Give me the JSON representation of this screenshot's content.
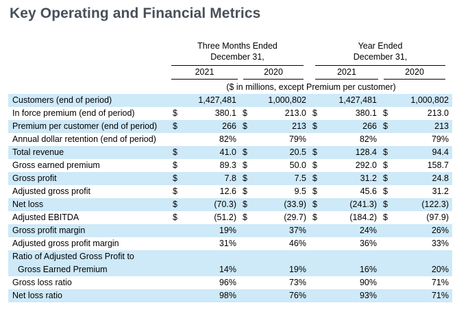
{
  "page_title": "Key Operating and Financial Metrics",
  "colors": {
    "row_shade": "#cee9f8",
    "title_text": "#47505a",
    "table_text": "#000000"
  },
  "table": {
    "note": "($ in millions, except Premium per customer)",
    "column_groups": [
      {
        "line1": "Three Months Ended",
        "line2": "December 31,",
        "years": [
          "2021",
          "2020"
        ]
      },
      {
        "line1": "Year Ended",
        "line2": "December 31,",
        "years": [
          "2021",
          "2020"
        ]
      }
    ],
    "rows": [
      {
        "label_lines": [
          "Customers (end of period)"
        ],
        "cells": [
          {
            "cur": "",
            "val": "1,427,481"
          },
          {
            "cur": "",
            "val": "1,000,802"
          },
          {
            "cur": "",
            "val": "1,427,481"
          },
          {
            "cur": "",
            "val": "1,000,802"
          }
        ]
      },
      {
        "label_lines": [
          "In force premium (end of period)"
        ],
        "cells": [
          {
            "cur": "$",
            "val": "380.1"
          },
          {
            "cur": "$",
            "val": "213.0"
          },
          {
            "cur": "$",
            "val": "380.1"
          },
          {
            "cur": "$",
            "val": "213.0"
          }
        ]
      },
      {
        "label_lines": [
          "Premium per customer (end of period)"
        ],
        "cells": [
          {
            "cur": "$",
            "val": "266"
          },
          {
            "cur": "$",
            "val": "213"
          },
          {
            "cur": "$",
            "val": "266"
          },
          {
            "cur": "$",
            "val": "213"
          }
        ]
      },
      {
        "label_lines": [
          "Annual dollar retention (end of period)"
        ],
        "cells": [
          {
            "cur": "",
            "val": "82%"
          },
          {
            "cur": "",
            "val": "79%"
          },
          {
            "cur": "",
            "val": "82%"
          },
          {
            "cur": "",
            "val": "79%"
          }
        ]
      },
      {
        "label_lines": [
          "Total revenue"
        ],
        "cells": [
          {
            "cur": "$",
            "val": "41.0"
          },
          {
            "cur": "$",
            "val": "20.5"
          },
          {
            "cur": "$",
            "val": "128.4"
          },
          {
            "cur": "$",
            "val": "94.4"
          }
        ]
      },
      {
        "label_lines": [
          "Gross earned premium"
        ],
        "cells": [
          {
            "cur": "$",
            "val": "89.3"
          },
          {
            "cur": "$",
            "val": "50.0"
          },
          {
            "cur": "$",
            "val": "292.0"
          },
          {
            "cur": "$",
            "val": "158.7"
          }
        ]
      },
      {
        "label_lines": [
          "Gross profit"
        ],
        "cells": [
          {
            "cur": "$",
            "val": "7.8"
          },
          {
            "cur": "$",
            "val": "7.5"
          },
          {
            "cur": "$",
            "val": "31.2"
          },
          {
            "cur": "$",
            "val": "24.8"
          }
        ]
      },
      {
        "label_lines": [
          "Adjusted gross profit"
        ],
        "cells": [
          {
            "cur": "$",
            "val": "12.6"
          },
          {
            "cur": "$",
            "val": "9.5"
          },
          {
            "cur": "$",
            "val": "45.6"
          },
          {
            "cur": "$",
            "val": "31.2"
          }
        ]
      },
      {
        "label_lines": [
          "Net loss"
        ],
        "cells": [
          {
            "cur": "$",
            "val": "(70.3)"
          },
          {
            "cur": "$",
            "val": "(33.9)"
          },
          {
            "cur": "$",
            "val": "(241.3)"
          },
          {
            "cur": "$",
            "val": "(122.3)"
          }
        ]
      },
      {
        "label_lines": [
          "Adjusted EBITDA"
        ],
        "cells": [
          {
            "cur": "$",
            "val": "(51.2)"
          },
          {
            "cur": "$",
            "val": "(29.7)"
          },
          {
            "cur": "$",
            "val": "(184.2)"
          },
          {
            "cur": "$",
            "val": "(97.9)"
          }
        ]
      },
      {
        "label_lines": [
          "Gross profit margin"
        ],
        "cells": [
          {
            "cur": "",
            "val": "19%"
          },
          {
            "cur": "",
            "val": "37%"
          },
          {
            "cur": "",
            "val": "24%"
          },
          {
            "cur": "",
            "val": "26%"
          }
        ]
      },
      {
        "label_lines": [
          "Adjusted gross profit margin"
        ],
        "cells": [
          {
            "cur": "",
            "val": "31%"
          },
          {
            "cur": "",
            "val": "46%"
          },
          {
            "cur": "",
            "val": "36%"
          },
          {
            "cur": "",
            "val": "33%"
          }
        ]
      },
      {
        "label_lines": [
          "Ratio of Adjusted Gross Profit to",
          "Gross Earned Premium"
        ],
        "cells": [
          {
            "cur": "",
            "val": "14%"
          },
          {
            "cur": "",
            "val": "19%"
          },
          {
            "cur": "",
            "val": "16%"
          },
          {
            "cur": "",
            "val": "20%"
          }
        ]
      },
      {
        "label_lines": [
          "Gross loss ratio"
        ],
        "cells": [
          {
            "cur": "",
            "val": "96%"
          },
          {
            "cur": "",
            "val": "73%"
          },
          {
            "cur": "",
            "val": "90%"
          },
          {
            "cur": "",
            "val": "71%"
          }
        ]
      },
      {
        "label_lines": [
          "Net loss ratio"
        ],
        "cells": [
          {
            "cur": "",
            "val": "98%"
          },
          {
            "cur": "",
            "val": "76%"
          },
          {
            "cur": "",
            "val": "93%"
          },
          {
            "cur": "",
            "val": "71%"
          }
        ]
      }
    ]
  }
}
